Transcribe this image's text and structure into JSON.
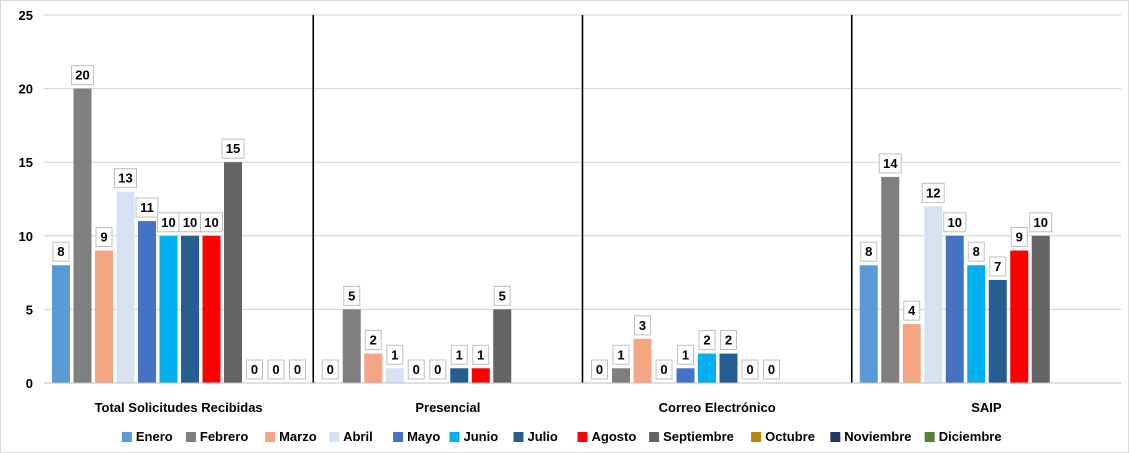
{
  "chart_data": {
    "type": "bar",
    "title": "",
    "xlabel": "",
    "ylabel": "",
    "ylim": [
      0,
      25
    ],
    "yticks": [
      0,
      5,
      10,
      15,
      20,
      25
    ],
    "grid": true,
    "legend_position": "bottom",
    "categories": [
      "Total Solicitudes Recibidas",
      "Presencial",
      "Correo Electrónico",
      "SAIP"
    ],
    "series": [
      {
        "name": "Enero",
        "color": "#5b9bd5",
        "values": [
          8,
          0,
          0,
          8
        ]
      },
      {
        "name": "Febrero",
        "color": "#7f7f7f",
        "values": [
          20,
          5,
          1,
          14
        ]
      },
      {
        "name": "Marzo",
        "color": "#f4a582",
        "values": [
          9,
          2,
          3,
          4
        ]
      },
      {
        "name": "Abril",
        "color": "#d6e1f2",
        "values": [
          13,
          1,
          0,
          12
        ]
      },
      {
        "name": "Mayo",
        "color": "#4472c4",
        "values": [
          11,
          0,
          1,
          10
        ]
      },
      {
        "name": "Junio",
        "color": "#00b0f0",
        "values": [
          10,
          0,
          2,
          8
        ]
      },
      {
        "name": "Julio",
        "color": "#255e91",
        "values": [
          10,
          1,
          2,
          7
        ]
      },
      {
        "name": "Agosto",
        "color": "#ff0000",
        "values": [
          10,
          1,
          0,
          9
        ]
      },
      {
        "name": "Septiembre",
        "color": "#636363",
        "values": [
          15,
          5,
          0,
          10
        ]
      },
      {
        "name": "Octubre",
        "color": "#b8860b",
        "values": [
          0,
          null,
          null,
          null
        ]
      },
      {
        "name": "Noviembre",
        "color": "#1f3864",
        "values": [
          0,
          null,
          null,
          null
        ]
      },
      {
        "name": "Diciembre",
        "color": "#548235",
        "values": [
          0,
          null,
          null,
          null
        ]
      }
    ]
  }
}
